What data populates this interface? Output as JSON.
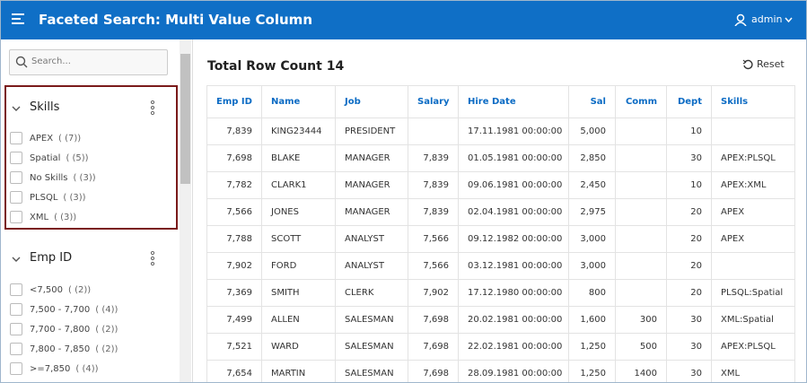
{
  "header": {
    "title": "Faceted Search: Multi Value Column",
    "user": "admin"
  },
  "search": {
    "placeholder": "Search..."
  },
  "facets": [
    {
      "title": "Skills",
      "options": [
        {
          "label": "APEX",
          "count": "( (7))"
        },
        {
          "label": "Spatial",
          "count": "( (5))"
        },
        {
          "label": "No Skills",
          "count": "( (3))"
        },
        {
          "label": "PLSQL",
          "count": "( (3))"
        },
        {
          "label": "XML",
          "count": "( (3))"
        }
      ]
    },
    {
      "title": "Emp ID",
      "options": [
        {
          "label": "<7,500",
          "count": "( (2))"
        },
        {
          "label": "7,500 - 7,700",
          "count": "( (4))"
        },
        {
          "label": "7,700 - 7,800",
          "count": "( (2))"
        },
        {
          "label": "7,800 - 7,850",
          "count": "( (2))"
        },
        {
          "label": ">=7,850",
          "count": "( (4))"
        }
      ]
    }
  ],
  "report": {
    "title": "Total Row Count 14",
    "reset": "Reset",
    "columns": [
      "Emp ID",
      "Name",
      "Job",
      "Salary",
      "Hire Date",
      "Sal",
      "Comm",
      "Dept",
      "Skills"
    ],
    "rows": [
      [
        "7,839",
        "KING23444",
        "PRESIDENT",
        null,
        "17.11.1981 00:00:00",
        "5,000",
        null,
        "10",
        null
      ],
      [
        "7,698",
        "BLAKE",
        "MANAGER",
        "7,839",
        "01.05.1981 00:00:00",
        "2,850",
        null,
        "30",
        "APEX:PLSQL"
      ],
      [
        "7,782",
        "CLARK1",
        "MANAGER",
        "7,839",
        "09.06.1981 00:00:00",
        "2,450",
        null,
        "10",
        "APEX:XML"
      ],
      [
        "7,566",
        "JONES",
        "MANAGER",
        "7,839",
        "02.04.1981 00:00:00",
        "2,975",
        null,
        "20",
        "APEX"
      ],
      [
        "7,788",
        "SCOTT",
        "ANALYST",
        "7,566",
        "09.12.1982 00:00:00",
        "3,000",
        null,
        "20",
        "APEX"
      ],
      [
        "7,902",
        "FORD",
        "ANALYST",
        "7,566",
        "03.12.1981 00:00:00",
        "3,000",
        null,
        "20",
        null
      ],
      [
        "7,369",
        "SMITH",
        "CLERK",
        "7,902",
        "17.12.1980 00:00:00",
        "800",
        null,
        "20",
        "PLSQL:Spatial"
      ],
      [
        "7,499",
        "ALLEN",
        "SALESMAN",
        "7,698",
        "20.02.1981 00:00:00",
        "1,600",
        "300",
        "30",
        "XML:Spatial"
      ],
      [
        "7,521",
        "WARD",
        "SALESMAN",
        "7,698",
        "22.02.1981 00:00:00",
        "1,250",
        "500",
        "30",
        "APEX:PLSQL"
      ],
      [
        "7,654",
        "MARTIN",
        "SALESMAN",
        "7,698",
        "28.09.1981 00:00:00",
        "1,250",
        "1400",
        "30",
        "XML"
      ]
    ]
  }
}
